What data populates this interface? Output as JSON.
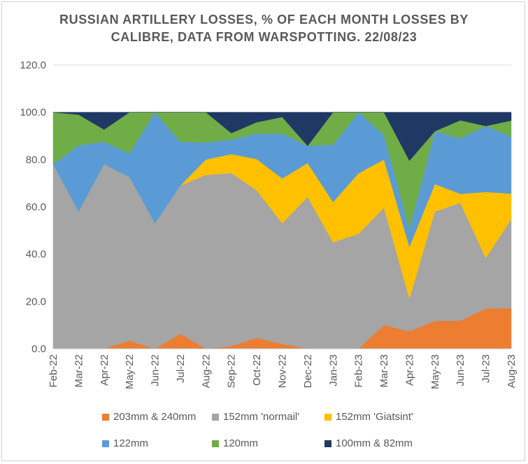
{
  "chart_data": {
    "type": "area",
    "stacked": true,
    "title": [
      "RUSSIAN ARTILLERY LOSSES, % OF EACH MONTH LOSSES BY",
      "CALIBRE, DATA FROM WARSPOTTING. 22/08/23"
    ],
    "xlabel": "",
    "ylabel": "",
    "ylim": [
      0,
      120
    ],
    "yticks": [
      "0.0",
      "20.0",
      "40.0",
      "60.0",
      "80.0",
      "100.0",
      "120.0"
    ],
    "grid": true,
    "legend_position": "bottom",
    "categories": [
      "Feb-22",
      "Mar-22",
      "Apr-22",
      "May-22",
      "Jun-22",
      "Jul-22",
      "Aug-22",
      "Sep-22",
      "Oct-22",
      "Nov-22",
      "Dec-22",
      "Jan-23",
      "Feb-23",
      "Mar-23",
      "Apr-23",
      "May-23",
      "Jun-23",
      "Jul-23",
      "Aug-23"
    ],
    "series": [
      {
        "name": "203mm & 240mm",
        "color": "#ed7d31",
        "values": [
          0,
          0,
          0,
          3.4,
          0,
          6.3,
          0,
          1.1,
          4.6,
          2,
          0,
          0,
          0,
          10,
          7.3,
          11.8,
          11.8,
          17,
          17.2
        ]
      },
      {
        "name": "152mm 'normail'",
        "color": "#a5a5a5",
        "values": [
          78,
          58,
          78,
          69.2,
          53,
          62.7,
          73.5,
          73.2,
          62.4,
          51,
          64.2,
          45,
          48.6,
          49.6,
          13.9,
          46.2,
          49.9,
          21.4,
          37.6
        ]
      },
      {
        "name": "152mm 'Giatsint'",
        "color": "#ffc000",
        "values": [
          0,
          0,
          0,
          0,
          0,
          0,
          6.5,
          8,
          13.2,
          19,
          14.3,
          17,
          25.6,
          20.4,
          21.9,
          11.6,
          3.8,
          27.9,
          10.8
        ]
      },
      {
        "name": "122mm",
        "color": "#5b9bd5",
        "values": [
          0,
          28,
          9.5,
          10,
          47,
          18.5,
          7.2,
          6.2,
          10.8,
          19,
          7.3,
          24.3,
          25.8,
          10.4,
          7.7,
          22.4,
          23.5,
          27.9,
          24.1
        ]
      },
      {
        "name": "120mm",
        "color": "#70ad47",
        "values": [
          22,
          13,
          5.2,
          17.4,
          0,
          12.5,
          12.8,
          2.7,
          4.8,
          7,
          0,
          13.7,
          0,
          9.6,
          28.7,
          0,
          7.6,
          0,
          6.8
        ]
      },
      {
        "name": "100mm & 82mm",
        "color": "#203864",
        "values": [
          0,
          1,
          7.3,
          0,
          0,
          0,
          0,
          8.8,
          4.2,
          2,
          14.2,
          0,
          0,
          0,
          20.5,
          8,
          3.4,
          5.8,
          3.5
        ]
      }
    ]
  }
}
